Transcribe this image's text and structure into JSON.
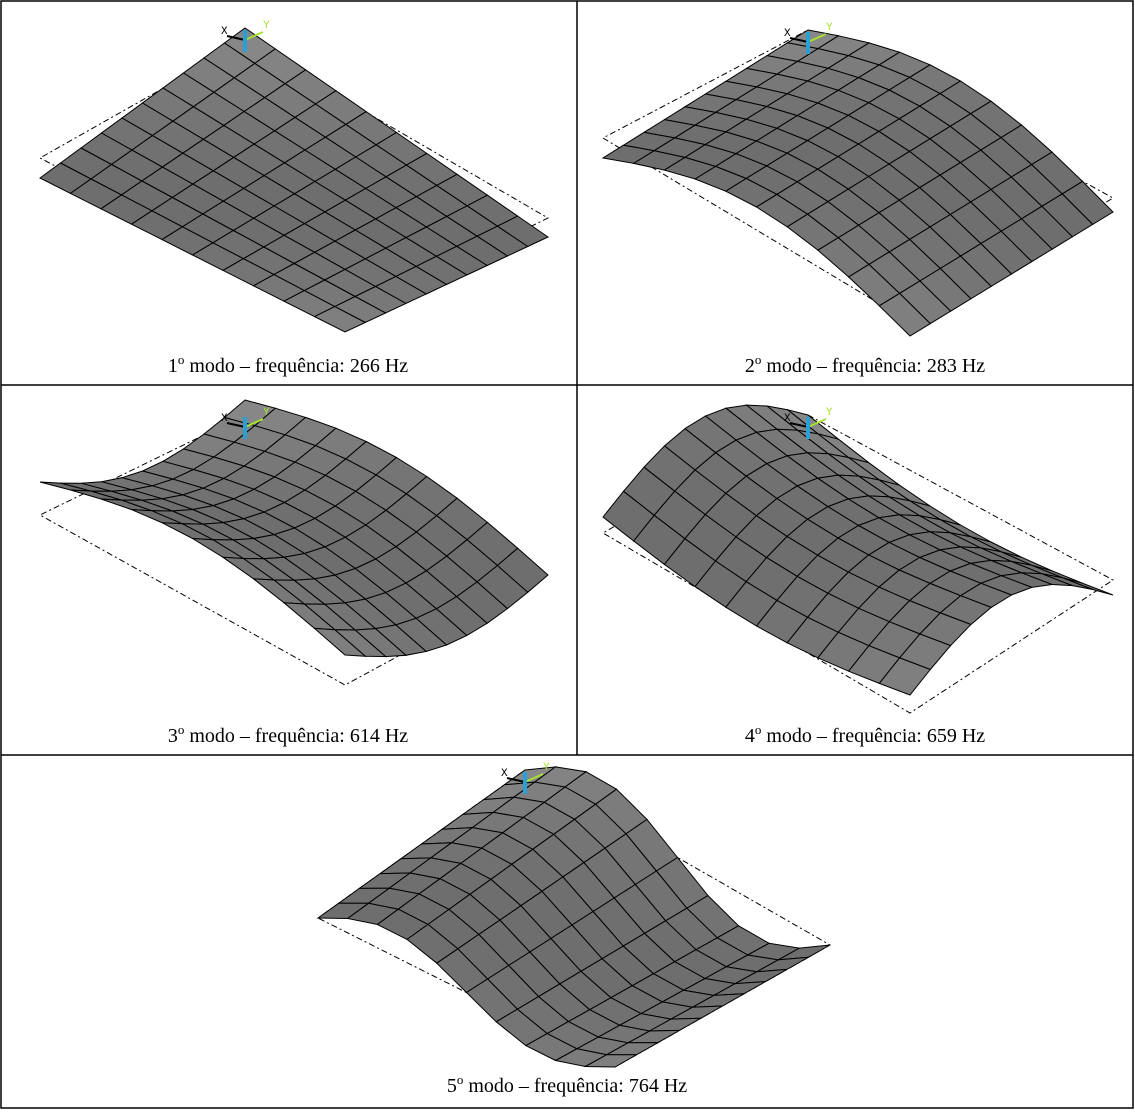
{
  "panels": [
    {
      "number": "1",
      "ordinal": "o",
      "caption": "modo – frequência: 266 Hz",
      "triad": {
        "x": "X",
        "y": "Y"
      }
    },
    {
      "number": "2",
      "ordinal": "o",
      "caption": "modo – frequência: 283 Hz",
      "triad": {
        "x": "X",
        "y": "Y"
      }
    },
    {
      "number": "3",
      "ordinal": "o",
      "caption": "modo – frequência: 614 Hz",
      "triad": {
        "x": "X",
        "y": "Y"
      }
    },
    {
      "number": "4",
      "ordinal": "o",
      "caption": "modo – frequência: 659 Hz",
      "triad": {
        "x": "X",
        "y": "Y"
      }
    },
    {
      "number": "5",
      "ordinal": "o",
      "caption": "modo – frequência: 764 Hz",
      "triad": {
        "x": "X",
        "y": "Y"
      }
    }
  ]
}
